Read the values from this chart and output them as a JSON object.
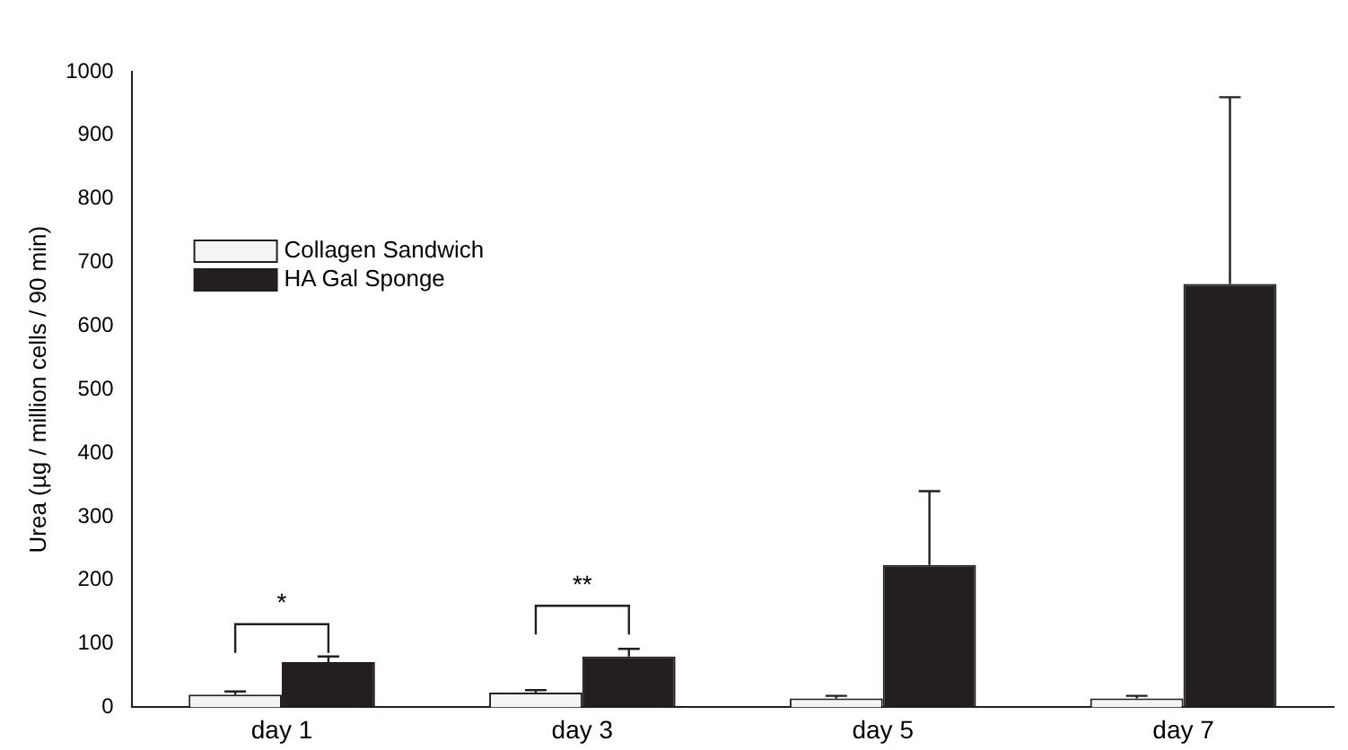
{
  "chart_data": {
    "type": "bar",
    "ylabel": "Urea (µg / million cells / 90 min)",
    "categories": [
      "day 1",
      "day 3",
      "day 5",
      "day 7"
    ],
    "series": [
      {
        "name": "Collagen Sandwich",
        "color": "#f4f4f4",
        "values": [
          20,
          23,
          14,
          14
        ],
        "errors": [
          [
            20,
            25
          ],
          [
            23,
            27
          ],
          [
            14,
            18
          ],
          [
            14,
            18
          ]
        ]
      },
      {
        "name": "HA Gal Sponge",
        "color": "#231f20",
        "values": [
          71,
          80,
          224,
          666
        ],
        "errors": [
          [
            71,
            80
          ],
          [
            80,
            92
          ],
          [
            224,
            340
          ],
          [
            666,
            960
          ]
        ]
      }
    ],
    "ylim": [
      0,
      1000
    ],
    "yticks": [
      0,
      100,
      200,
      300,
      400,
      500,
      600,
      700,
      800,
      900,
      1000
    ],
    "grid": false,
    "legend": "top left",
    "annotations": [
      "*",
      "**"
    ]
  }
}
